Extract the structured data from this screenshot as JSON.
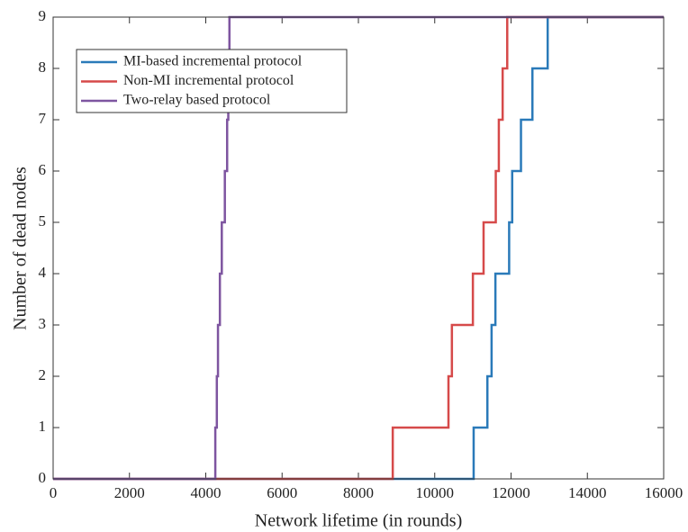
{
  "chart_data": {
    "type": "line",
    "step": "post",
    "xlabel": "Network lifetime (in rounds)",
    "ylabel": "Number of dead nodes",
    "xlim": [
      0,
      16000
    ],
    "xticks": [
      0,
      2000,
      4000,
      6000,
      8000,
      10000,
      12000,
      14000,
      16000
    ],
    "ylim": [
      0,
      9
    ],
    "yticks": [
      0,
      1,
      2,
      3,
      4,
      5,
      6,
      7,
      8,
      9
    ],
    "grid": false,
    "legend": "northwest",
    "series": [
      {
        "name": "MI-based incremental protocol",
        "color": "#2a7ab9",
        "x": [
          0,
          11020,
          11380,
          11490,
          11590,
          11950,
          12030,
          12260,
          12560,
          12960,
          16000
        ],
        "values": [
          0,
          1,
          2,
          3,
          4,
          5,
          6,
          7,
          8,
          9,
          9
        ]
      },
      {
        "name": "Non-MI incremental protocol",
        "color": "#d64a4a",
        "x": [
          0,
          8900,
          10360,
          10450,
          11000,
          11280,
          11600,
          11680,
          11780,
          11900,
          16000
        ],
        "values": [
          0,
          1,
          2,
          3,
          4,
          5,
          6,
          7,
          8,
          9,
          9
        ]
      },
      {
        "name": "Two-relay based protocol",
        "color": "#7e55a0",
        "x": [
          0,
          4250,
          4290,
          4320,
          4370,
          4420,
          4500,
          4560,
          4590,
          4620,
          16000
        ],
        "values": [
          0,
          1,
          2,
          3,
          4,
          5,
          6,
          7,
          8,
          9,
          9
        ]
      }
    ]
  }
}
